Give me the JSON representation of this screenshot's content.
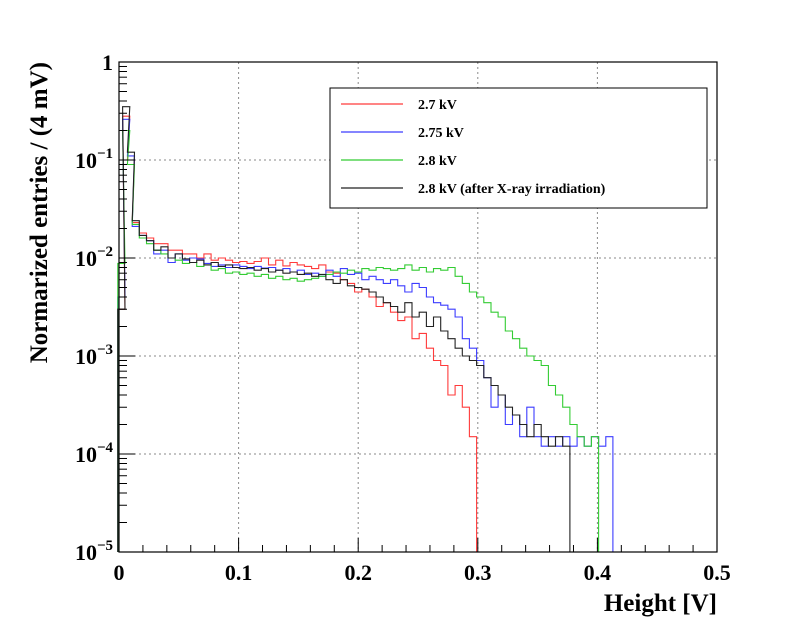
{
  "chart_data": {
    "type": "line",
    "title": "",
    "xlabel": "Height [V]",
    "ylabel": "Normarized entries / (4 mV)",
    "xlim": [
      0,
      0.5
    ],
    "ylim": [
      1e-05,
      1
    ],
    "y_scale": "log",
    "grid": true,
    "legend_position": "top-right",
    "x_ticks": [
      {
        "value": 0,
        "label": "0"
      },
      {
        "value": 0.1,
        "label": "0.1"
      },
      {
        "value": 0.2,
        "label": "0.2"
      },
      {
        "value": 0.3,
        "label": "0.3"
      },
      {
        "value": 0.4,
        "label": "0.4"
      },
      {
        "value": 0.5,
        "label": "0.5"
      }
    ],
    "y_ticks": [
      {
        "value": 1,
        "base": "1",
        "exp": ""
      },
      {
        "value": 0.1,
        "base": "10",
        "exp": "−1"
      },
      {
        "value": 0.01,
        "base": "10",
        "exp": "−2"
      },
      {
        "value": 0.001,
        "base": "10",
        "exp": "−3"
      },
      {
        "value": 0.0001,
        "base": "10",
        "exp": "−4"
      },
      {
        "value": 1e-05,
        "base": "10",
        "exp": "−5"
      }
    ],
    "series": [
      {
        "name": "2.7 kV",
        "color": "#ff3b3b",
        "points": [
          [
            0.002,
            0.003
          ],
          [
            0.006,
            0.28
          ],
          [
            0.01,
            0.1
          ],
          [
            0.014,
            0.023
          ],
          [
            0.02,
            0.018
          ],
          [
            0.026,
            0.016
          ],
          [
            0.032,
            0.014
          ],
          [
            0.038,
            0.014
          ],
          [
            0.044,
            0.012
          ],
          [
            0.05,
            0.012
          ],
          [
            0.056,
            0.011
          ],
          [
            0.062,
            0.011
          ],
          [
            0.068,
            0.01
          ],
          [
            0.074,
            0.011
          ],
          [
            0.08,
            0.0095
          ],
          [
            0.086,
            0.01
          ],
          [
            0.092,
            0.0095
          ],
          [
            0.098,
            0.009
          ],
          [
            0.104,
            0.0092
          ],
          [
            0.11,
            0.0088
          ],
          [
            0.116,
            0.0092
          ],
          [
            0.122,
            0.01
          ],
          [
            0.128,
            0.0085
          ],
          [
            0.134,
            0.0095
          ],
          [
            0.14,
            0.0083
          ],
          [
            0.146,
            0.009
          ],
          [
            0.152,
            0.0085
          ],
          [
            0.158,
            0.0082
          ],
          [
            0.164,
            0.0078
          ],
          [
            0.17,
            0.0085
          ],
          [
            0.176,
            0.0072
          ],
          [
            0.182,
            0.007
          ],
          [
            0.188,
            0.006
          ],
          [
            0.194,
            0.0055
          ],
          [
            0.2,
            0.0045
          ],
          [
            0.206,
            0.0048
          ],
          [
            0.212,
            0.004
          ],
          [
            0.218,
            0.0032
          ],
          [
            0.224,
            0.0035
          ],
          [
            0.23,
            0.0028
          ],
          [
            0.236,
            0.0023
          ],
          [
            0.242,
            0.0025
          ],
          [
            0.248,
            0.0015
          ],
          [
            0.254,
            0.0017
          ],
          [
            0.26,
            0.0012
          ],
          [
            0.266,
            0.0009
          ],
          [
            0.272,
            0.0008
          ],
          [
            0.278,
            0.0004
          ],
          [
            0.284,
            0.0005
          ],
          [
            0.29,
            0.0003
          ],
          [
            0.296,
            0.00015
          ],
          [
            0.302,
            1e-05
          ]
        ]
      },
      {
        "name": "2.75 kV",
        "color": "#3c3cff",
        "points": [
          [
            0.002,
            0.004
          ],
          [
            0.006,
            0.26
          ],
          [
            0.01,
            0.11
          ],
          [
            0.014,
            0.021
          ],
          [
            0.02,
            0.017
          ],
          [
            0.026,
            0.015
          ],
          [
            0.032,
            0.011
          ],
          [
            0.038,
            0.012
          ],
          [
            0.044,
            0.009
          ],
          [
            0.05,
            0.011
          ],
          [
            0.056,
            0.0095
          ],
          [
            0.062,
            0.01
          ],
          [
            0.068,
            0.0098
          ],
          [
            0.074,
            0.0088
          ],
          [
            0.08,
            0.0082
          ],
          [
            0.086,
            0.0085
          ],
          [
            0.092,
            0.008
          ],
          [
            0.098,
            0.0085
          ],
          [
            0.104,
            0.0082
          ],
          [
            0.11,
            0.0078
          ],
          [
            0.116,
            0.0082
          ],
          [
            0.122,
            0.0079
          ],
          [
            0.128,
            0.008
          ],
          [
            0.134,
            0.0075
          ],
          [
            0.14,
            0.0078
          ],
          [
            0.146,
            0.0072
          ],
          [
            0.152,
            0.0075
          ],
          [
            0.158,
            0.0068
          ],
          [
            0.164,
            0.007
          ],
          [
            0.17,
            0.0065
          ],
          [
            0.176,
            0.0075
          ],
          [
            0.182,
            0.0065
          ],
          [
            0.188,
            0.0078
          ],
          [
            0.194,
            0.0068
          ],
          [
            0.2,
            0.007
          ],
          [
            0.206,
            0.006
          ],
          [
            0.212,
            0.0065
          ],
          [
            0.218,
            0.006
          ],
          [
            0.224,
            0.0055
          ],
          [
            0.23,
            0.006
          ],
          [
            0.236,
            0.0052
          ],
          [
            0.242,
            0.0045
          ],
          [
            0.248,
            0.0055
          ],
          [
            0.254,
            0.005
          ],
          [
            0.26,
            0.004
          ],
          [
            0.266,
            0.0035
          ],
          [
            0.272,
            0.0033
          ],
          [
            0.278,
            0.003
          ],
          [
            0.284,
            0.0025
          ],
          [
            0.29,
            0.0015
          ],
          [
            0.296,
            0.0012
          ],
          [
            0.302,
            0.0009
          ],
          [
            0.308,
            0.0006
          ],
          [
            0.314,
            0.0003
          ],
          [
            0.32,
            0.0004
          ],
          [
            0.326,
            0.0002
          ],
          [
            0.332,
            0.00025
          ],
          [
            0.338,
            0.00015
          ],
          [
            0.344,
            0.0003
          ],
          [
            0.35,
            0.00015
          ],
          [
            0.356,
            0.00012
          ],
          [
            0.362,
            0.00015
          ],
          [
            0.368,
            0.00012
          ],
          [
            0.374,
            0.00015
          ],
          [
            0.38,
            0.00012
          ],
          [
            0.386,
            0.00015
          ],
          [
            0.392,
            0.00012
          ],
          [
            0.398,
            0.00015
          ],
          [
            0.404,
            0.00012
          ],
          [
            0.41,
            0.00015
          ],
          [
            0.416,
            1e-05
          ]
        ]
      },
      {
        "name": "2.8 kV",
        "color": "#33cc33",
        "points": [
          [
            0.002,
            0.0088
          ],
          [
            0.006,
            0.2
          ],
          [
            0.01,
            0.09
          ],
          [
            0.014,
            0.022
          ],
          [
            0.02,
            0.016
          ],
          [
            0.026,
            0.014
          ],
          [
            0.032,
            0.012
          ],
          [
            0.038,
            0.011
          ],
          [
            0.044,
            0.01
          ],
          [
            0.05,
            0.0095
          ],
          [
            0.056,
            0.0088
          ],
          [
            0.062,
            0.009
          ],
          [
            0.068,
            0.0082
          ],
          [
            0.074,
            0.0085
          ],
          [
            0.08,
            0.0075
          ],
          [
            0.086,
            0.0078
          ],
          [
            0.092,
            0.007
          ],
          [
            0.098,
            0.0072
          ],
          [
            0.104,
            0.0068
          ],
          [
            0.11,
            0.007
          ],
          [
            0.116,
            0.0065
          ],
          [
            0.122,
            0.0068
          ],
          [
            0.128,
            0.0062
          ],
          [
            0.134,
            0.0065
          ],
          [
            0.14,
            0.006
          ],
          [
            0.146,
            0.0062
          ],
          [
            0.152,
            0.0058
          ],
          [
            0.158,
            0.006
          ],
          [
            0.164,
            0.0062
          ],
          [
            0.17,
            0.0065
          ],
          [
            0.176,
            0.0068
          ],
          [
            0.182,
            0.0072
          ],
          [
            0.188,
            0.007
          ],
          [
            0.194,
            0.0075
          ],
          [
            0.2,
            0.0072
          ],
          [
            0.206,
            0.0078
          ],
          [
            0.212,
            0.0075
          ],
          [
            0.218,
            0.008
          ],
          [
            0.224,
            0.0078
          ],
          [
            0.23,
            0.0075
          ],
          [
            0.236,
            0.0078
          ],
          [
            0.242,
            0.0085
          ],
          [
            0.248,
            0.0075
          ],
          [
            0.254,
            0.008
          ],
          [
            0.26,
            0.0072
          ],
          [
            0.266,
            0.0078
          ],
          [
            0.272,
            0.0075
          ],
          [
            0.278,
            0.008
          ],
          [
            0.284,
            0.0065
          ],
          [
            0.29,
            0.0055
          ],
          [
            0.296,
            0.0045
          ],
          [
            0.302,
            0.004
          ],
          [
            0.308,
            0.0035
          ],
          [
            0.314,
            0.0028
          ],
          [
            0.32,
            0.0025
          ],
          [
            0.326,
            0.0018
          ],
          [
            0.332,
            0.0015
          ],
          [
            0.338,
            0.0012
          ],
          [
            0.344,
            0.001
          ],
          [
            0.35,
            0.0009
          ],
          [
            0.356,
            0.0008
          ],
          [
            0.362,
            0.0005
          ],
          [
            0.368,
            0.0004
          ],
          [
            0.374,
            0.0003
          ],
          [
            0.38,
            0.0002
          ],
          [
            0.386,
            0.00015
          ],
          [
            0.392,
            0.00012
          ],
          [
            0.398,
            0.00015
          ],
          [
            0.404,
            1e-05
          ]
        ]
      },
      {
        "name": "2.8 kV (after X-ray irradiation)",
        "color": "#222222",
        "points": [
          [
            0.002,
            0.003
          ],
          [
            0.006,
            0.35
          ],
          [
            0.01,
            0.12
          ],
          [
            0.014,
            0.024
          ],
          [
            0.02,
            0.017
          ],
          [
            0.026,
            0.015
          ],
          [
            0.032,
            0.012
          ],
          [
            0.038,
            0.013
          ],
          [
            0.044,
            0.01
          ],
          [
            0.05,
            0.011
          ],
          [
            0.056,
            0.0098
          ],
          [
            0.062,
            0.009
          ],
          [
            0.068,
            0.0095
          ],
          [
            0.074,
            0.0085
          ],
          [
            0.08,
            0.009
          ],
          [
            0.086,
            0.0082
          ],
          [
            0.092,
            0.0085
          ],
          [
            0.098,
            0.008
          ],
          [
            0.104,
            0.0078
          ],
          [
            0.11,
            0.008
          ],
          [
            0.116,
            0.0075
          ],
          [
            0.122,
            0.0078
          ],
          [
            0.128,
            0.0072
          ],
          [
            0.134,
            0.0075
          ],
          [
            0.14,
            0.007
          ],
          [
            0.146,
            0.0072
          ],
          [
            0.152,
            0.0068
          ],
          [
            0.158,
            0.007
          ],
          [
            0.164,
            0.0065
          ],
          [
            0.17,
            0.0068
          ],
          [
            0.176,
            0.006
          ],
          [
            0.182,
            0.0055
          ],
          [
            0.188,
            0.006
          ],
          [
            0.194,
            0.0052
          ],
          [
            0.2,
            0.005
          ],
          [
            0.206,
            0.0048
          ],
          [
            0.212,
            0.0045
          ],
          [
            0.218,
            0.004
          ],
          [
            0.224,
            0.0035
          ],
          [
            0.23,
            0.0032
          ],
          [
            0.236,
            0.0028
          ],
          [
            0.242,
            0.0035
          ],
          [
            0.248,
            0.0025
          ],
          [
            0.254,
            0.0028
          ],
          [
            0.26,
            0.002
          ],
          [
            0.266,
            0.0025
          ],
          [
            0.272,
            0.0018
          ],
          [
            0.278,
            0.0015
          ],
          [
            0.284,
            0.0012
          ],
          [
            0.29,
            0.001
          ],
          [
            0.296,
            0.0009
          ],
          [
            0.302,
            0.0008
          ],
          [
            0.308,
            0.0006
          ],
          [
            0.314,
            0.0005
          ],
          [
            0.32,
            0.0004
          ],
          [
            0.326,
            0.0003
          ],
          [
            0.332,
            0.00025
          ],
          [
            0.338,
            0.0002
          ],
          [
            0.344,
            0.00015
          ],
          [
            0.35,
            0.0002
          ],
          [
            0.356,
            0.00015
          ],
          [
            0.362,
            0.00012
          ],
          [
            0.368,
            0.00015
          ],
          [
            0.374,
            0.00012
          ],
          [
            0.38,
            1e-05
          ]
        ]
      }
    ]
  }
}
